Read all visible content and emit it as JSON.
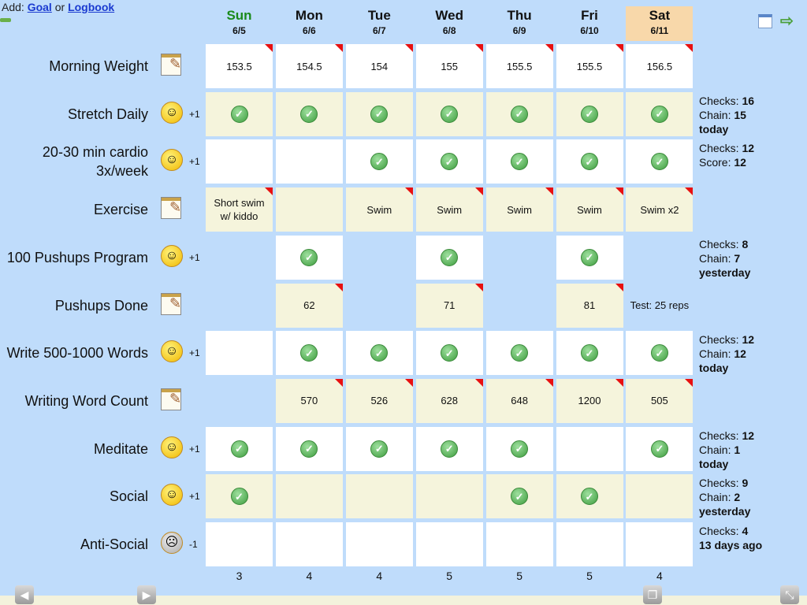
{
  "top": {
    "prefix": "Add: ",
    "goal": "Goal",
    "or": " or ",
    "logbook": "Logbook"
  },
  "nav": {
    "prev_icon": "arrow-left-icon",
    "next_icon": "arrow-right-icon",
    "calendar_icon": "calendar-icon"
  },
  "days": [
    {
      "name": "Sun",
      "date": "6/5"
    },
    {
      "name": "Mon",
      "date": "6/6"
    },
    {
      "name": "Tue",
      "date": "6/7"
    },
    {
      "name": "Wed",
      "date": "6/8"
    },
    {
      "name": "Thu",
      "date": "6/9"
    },
    {
      "name": "Fri",
      "date": "6/10"
    },
    {
      "name": "Sat",
      "date": "6/11"
    }
  ],
  "rows": [
    {
      "label": "Morning Weight",
      "icon": "notepad",
      "cells": [
        "153.5",
        "154.5",
        "154",
        "155",
        "155.5",
        "155.5",
        "156.5"
      ],
      "flags": [
        1,
        1,
        1,
        1,
        1,
        1,
        1
      ]
    },
    {
      "label": "Stretch Daily",
      "icon": "smiley",
      "points": "+1",
      "cells": [
        "✓",
        "✓",
        "✓",
        "✓",
        "✓",
        "✓",
        "✓"
      ],
      "stats": [
        [
          "Checks: ",
          "16"
        ],
        [
          "Chain: ",
          "15"
        ],
        [
          "",
          "today"
        ]
      ]
    },
    {
      "label": "20-30 min cardio 3x/week",
      "icon": "smiley",
      "points": "+1",
      "cells": [
        "",
        "",
        "✓",
        "✓",
        "✓",
        "✓",
        "✓"
      ],
      "stats": [
        [
          "Checks: ",
          "12"
        ],
        [
          "Score: ",
          "12"
        ]
      ]
    },
    {
      "label": "Exercise",
      "icon": "notepad",
      "cells": [
        "Short swim w/ kiddo",
        "",
        "Swim",
        "Swim",
        "Swim",
        "Swim",
        "Swim x2"
      ],
      "flags": [
        1,
        0,
        1,
        1,
        1,
        1,
        1
      ]
    },
    {
      "label": "100 Pushups Program",
      "icon": "smiley",
      "points": "+1",
      "cells": [
        null,
        "✓",
        null,
        "✓",
        null,
        "✓",
        null
      ],
      "stats": [
        [
          "Checks: ",
          "8"
        ],
        [
          "Chain: ",
          "7"
        ],
        [
          "",
          "yesterday"
        ]
      ]
    },
    {
      "label": "Pushups Done",
      "icon": "notepad",
      "cells": [
        null,
        "62",
        null,
        "71",
        null,
        "81",
        "Test: 25 reps"
      ],
      "flags": [
        0,
        1,
        0,
        1,
        0,
        1,
        0
      ],
      "bare": [
        0,
        0,
        0,
        0,
        0,
        0,
        1
      ]
    },
    {
      "label": "Write 500-1000 Words",
      "icon": "smiley",
      "points": "+1",
      "cells": [
        "",
        "✓",
        "✓",
        "✓",
        "✓",
        "✓",
        "✓"
      ],
      "stats": [
        [
          "Checks: ",
          "12"
        ],
        [
          "Chain: ",
          "12"
        ],
        [
          "",
          "today"
        ]
      ],
      "nocell": [
        1,
        0,
        0,
        0,
        0,
        0,
        0
      ]
    },
    {
      "label": "Writing Word Count",
      "icon": "notepad",
      "cells": [
        null,
        "570",
        "526",
        "628",
        "648",
        "1200",
        "505"
      ],
      "flags": [
        0,
        1,
        1,
        1,
        1,
        1,
        1
      ]
    },
    {
      "label": "Meditate",
      "icon": "smiley",
      "points": "+1",
      "cells": [
        "✓",
        "✓",
        "✓",
        "✓",
        "✓",
        "",
        "✓"
      ],
      "stats": [
        [
          "Checks: ",
          "12"
        ],
        [
          "Chain: ",
          "1"
        ],
        [
          "",
          "today"
        ]
      ]
    },
    {
      "label": "Social",
      "icon": "smiley",
      "points": "+1",
      "cells": [
        "✓",
        "",
        "",
        "",
        "✓",
        "✓",
        ""
      ],
      "stats": [
        [
          "Checks: ",
          "9"
        ],
        [
          "Chain: ",
          "2"
        ],
        [
          "",
          "yesterday"
        ]
      ]
    },
    {
      "label": "Anti-Social",
      "icon": "frown",
      "points": "-1",
      "cells": [
        "",
        "",
        "",
        "",
        "",
        "",
        ""
      ],
      "stats": [
        [
          "Checks: ",
          "4"
        ],
        [
          "",
          "13 days ago"
        ]
      ]
    }
  ],
  "totals": [
    "3",
    "4",
    "4",
    "5",
    "5",
    "5",
    "4"
  ],
  "bottom": {
    "back_icon": "back-icon",
    "forward_icon": "forward-icon",
    "tabs_icon": "tabs-icon",
    "resize_icon": "resize-icon"
  }
}
